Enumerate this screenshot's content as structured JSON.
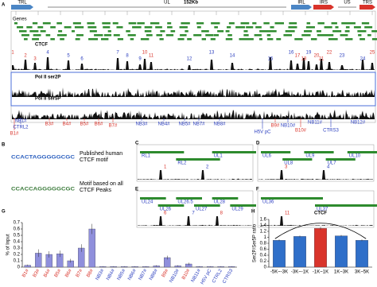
{
  "panel_labels": [
    "A",
    "B",
    "C",
    "D",
    "E",
    "F",
    "G",
    "H"
  ],
  "genome": {
    "size_label": "152Kb",
    "regions": [
      "TRL",
      "UL",
      "IRL",
      "IRS",
      "US",
      "TRS"
    ],
    "genes_label": "Genes",
    "tracks": [
      "CTCF",
      "Pol II ser2P",
      "Pol II ser5P"
    ],
    "peaks": [
      "1",
      "2",
      "3",
      "4",
      "5",
      "6",
      "7",
      "8",
      "9",
      "10",
      "11",
      "12",
      "13",
      "14",
      "15",
      "16",
      "17",
      "18",
      "19",
      "20",
      "21",
      "22",
      "23",
      "24",
      "25"
    ],
    "sites": [
      "B1#",
      "CTRL2",
      "NB1#",
      "B3#",
      "B4#",
      "B5#",
      "B6#",
      "B7#",
      "NB3#",
      "NB4#",
      "NB5#",
      "NB7#",
      "NB8#",
      "H5V pC",
      "B9#",
      "NB10#",
      "B10#",
      "NB11#",
      "CTRS3",
      "NB12#"
    ]
  },
  "motifs": [
    {
      "logo": "CCACTAGGGGGCGC",
      "caption": "Published human CTCF motif"
    },
    {
      "logo": "CCACCAGGGGGCGC",
      "caption": "Motif based on all CTCF Peaks"
    }
  ],
  "zoom_panels": [
    {
      "genes": [
        "RL1",
        "RL2",
        "UL1"
      ],
      "peaks": [
        "1",
        "2"
      ]
    },
    {
      "genes": [
        "UL6",
        "UL8",
        "UL9",
        "UL7",
        "UL10"
      ],
      "peaks": [
        "3",
        "4"
      ]
    },
    {
      "genes": [
        "UL24",
        "UL26",
        "UL26.5",
        "UL27",
        "UL28",
        "UL29"
      ],
      "peaks": [
        "6",
        "7",
        "8"
      ]
    },
    {
      "genes": [
        "UL36",
        "UL37"
      ],
      "peaks": [
        "11"
      ]
    }
  ],
  "chart_data": [
    {
      "type": "bar",
      "ylabel": "% of Input",
      "categories": [
        "B1#",
        "B3#",
        "B4#",
        "B5#",
        "B6#",
        "B7#",
        "B8#",
        "NB3#",
        "NB4#",
        "NB5#",
        "NB6#",
        "NB7#",
        "NB8#",
        "B9#",
        "NB10#",
        "B10#",
        "NB11#",
        "H5V pC",
        "CTRL2",
        "CTRS3"
      ],
      "values": [
        0.03,
        0.22,
        0.2,
        0.21,
        0.1,
        0.3,
        0.6,
        0.01,
        0.01,
        0.01,
        0.01,
        0.01,
        0.02,
        0.15,
        0.02,
        0.05,
        0.01,
        0.01,
        0.01,
        0.01
      ],
      "errors": [
        0.01,
        0.06,
        0.05,
        0.05,
        0.03,
        0.06,
        0.08,
        0.005,
        0.005,
        0.005,
        0.005,
        0.005,
        0.01,
        0.03,
        0.01,
        0.02,
        0.005,
        0.005,
        0.005,
        0.005
      ],
      "color": "#8f8fdc",
      "ylim": [
        0,
        0.7
      ],
      "yticks": [
        0,
        0.1,
        0.2,
        0.3,
        0.4,
        0.5,
        0.6,
        0.7
      ]
    },
    {
      "type": "bar",
      "ylabel": "Ser2P/Ser5P ratio",
      "annotation": "CTCF",
      "categories": [
        "-5K~-3K",
        "-3K~-1K",
        "-1K~1K",
        "1K~3K",
        "3K~5K"
      ],
      "values": [
        0.9,
        1.03,
        1.3,
        1.05,
        0.9
      ],
      "errors": [
        0.03,
        0.03,
        0.05,
        0.03,
        0.03
      ],
      "colors": [
        "#2f6fc9",
        "#2f6fc9",
        "#d9342b",
        "#2f6fc9",
        "#2f6fc9"
      ],
      "ylim": [
        0,
        1.6
      ],
      "yticks": [
        0,
        0.2,
        0.4,
        0.6,
        0.8,
        1,
        1.2,
        1.4,
        1.6
      ]
    }
  ]
}
